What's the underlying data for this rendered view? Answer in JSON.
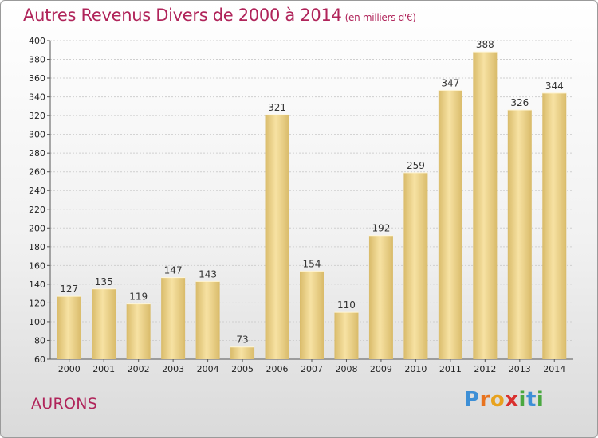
{
  "header": {
    "title": "Autres Revenus Divers de 2000 à 2014",
    "unit": "(en milliers d'€)"
  },
  "footer": {
    "city": "AURONS",
    "logo_letters": [
      "P",
      "r",
      "o",
      "x",
      "i",
      "t",
      "i"
    ],
    "logo_colors": [
      "#3d8fd6",
      "#e8731e",
      "#e8a21e",
      "#d9302e",
      "#4aa840",
      "#3d8fd6",
      "#4aa840"
    ]
  },
  "chart_data": {
    "type": "bar",
    "title": "Autres Revenus Divers de 2000 à 2014",
    "subtitle": "(en milliers d'€)",
    "categories": [
      "2000",
      "2001",
      "2002",
      "2003",
      "2004",
      "2005",
      "2006",
      "2007",
      "2008",
      "2009",
      "2010",
      "2011",
      "2012",
      "2013",
      "2014"
    ],
    "values": [
      127,
      135,
      119,
      147,
      143,
      73,
      321,
      154,
      110,
      192,
      259,
      347,
      388,
      326,
      344
    ],
    "ylim": [
      60,
      400
    ],
    "yticks": [
      60,
      80,
      100,
      120,
      140,
      160,
      180,
      200,
      220,
      240,
      260,
      280,
      300,
      320,
      340,
      360,
      380,
      400
    ],
    "grid": true,
    "bar_color_light": "#f7e2a3",
    "bar_color_dark": "#d9bb6a",
    "title_color": "#b0245a"
  }
}
